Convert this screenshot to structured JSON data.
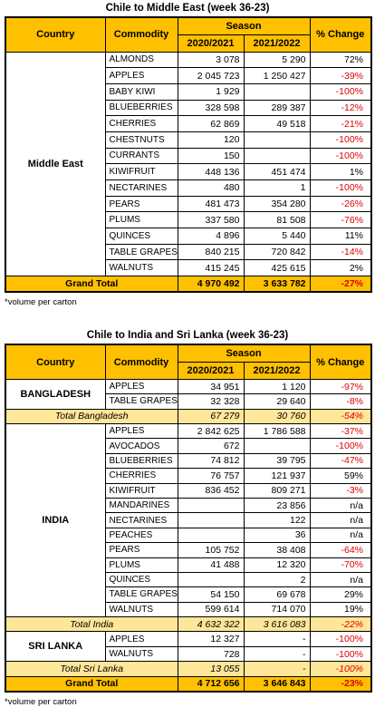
{
  "tables": [
    {
      "title": "Chile to Middle East (week 36-23)",
      "header": {
        "country": "Country",
        "commodity": "Commodity",
        "season": "Season",
        "years": [
          "2020/2021",
          "2021/2022"
        ],
        "change": "% Change"
      },
      "groups": [
        {
          "country": "Middle East",
          "rows": [
            [
              "ALMONDS",
              "3 078",
              "5 290",
              "72%"
            ],
            [
              "APPLES",
              "2 045 723",
              "1 250 427",
              "-39%"
            ],
            [
              "BABY KIWI",
              "1 929",
              null,
              "-100%"
            ],
            [
              "BLUEBERRIES",
              "328 598",
              "289 387",
              "-12%"
            ],
            [
              "CHERRIES",
              "62 869",
              "49 518",
              "-21%"
            ],
            [
              "CHESTNUTS",
              "120",
              null,
              "-100%"
            ],
            [
              "CURRANTS",
              "150",
              null,
              "-100%"
            ],
            [
              "KIWIFRUIT",
              "448 136",
              "451 474",
              "1%"
            ],
            [
              "NECTARINES",
              "480",
              "1",
              "-100%"
            ],
            [
              "PEARS",
              "481 473",
              "354 280",
              "-26%"
            ],
            [
              "PLUMS",
              "337 580",
              "81 508",
              "-76%"
            ],
            [
              "QUINCES",
              "4 896",
              "5 440",
              "11%"
            ],
            [
              "TABLE GRAPES",
              "840 215",
              "720 842",
              "-14%"
            ],
            [
              "WALNUTS",
              "415 245",
              "425 615",
              "2%"
            ]
          ]
        }
      ],
      "grand_total": [
        "Grand Total",
        "4 970 492",
        "3 633 782",
        "-27%"
      ],
      "note": "*volume per carton"
    },
    {
      "title": "Chile to India and Sri Lanka (week 36-23)",
      "header": {
        "country": "Country",
        "commodity": "Commodity",
        "season": "Season",
        "years": [
          "2020/2021",
          "2021/2022"
        ],
        "change": "% Change"
      },
      "groups": [
        {
          "country": "BANGLADESH",
          "rows": [
            [
              "APPLES",
              "34 951",
              "1 120",
              "-97%"
            ],
            [
              "TABLE GRAPES",
              "32 328",
              "29 640",
              "-8%"
            ]
          ],
          "total": [
            "Total Bangladesh",
            "67 279",
            "30 760",
            "-54%"
          ]
        },
        {
          "country": "INDIA",
          "rows": [
            [
              "APPLES",
              "2 842 625",
              "1 786 588",
              "-37%"
            ],
            [
              "AVOCADOS",
              "672",
              null,
              "-100%"
            ],
            [
              "BLUEBERRIES",
              "74 812",
              "39 795",
              "-47%"
            ],
            [
              "CHERRIES",
              "76 757",
              "121 937",
              "59%"
            ],
            [
              "KIWIFRUIT",
              "836 452",
              "809 271",
              "-3%"
            ],
            [
              "MANDARINES",
              null,
              "23 856",
              "n/a"
            ],
            [
              "NECTARINES",
              null,
              "122",
              "n/a"
            ],
            [
              "PEACHES",
              null,
              "36",
              "n/a"
            ],
            [
              "PEARS",
              "105 752",
              "38 408",
              "-64%"
            ],
            [
              "PLUMS",
              "41 488",
              "12 320",
              "-70%"
            ],
            [
              "QUINCES",
              null,
              "2",
              "n/a"
            ],
            [
              "TABLE GRAPES",
              "54 150",
              "69 678",
              "29%"
            ],
            [
              "WALNUTS",
              "599 614",
              "714 070",
              "19%"
            ]
          ],
          "total": [
            "Total India",
            "4 632 322",
            "3 616 083",
            "-22%"
          ]
        },
        {
          "country": "SRI LANKA",
          "rows": [
            [
              "APPLES",
              "12 327",
              "-",
              "-100%"
            ],
            [
              "WALNUTS",
              "728",
              "-",
              "-100%"
            ]
          ],
          "total": [
            "Total Sri Lanka",
            "13 055",
            "-",
            "-100%"
          ]
        }
      ],
      "grand_total": [
        "Grand Total",
        "4 712 656",
        "3 646 843",
        "-23%"
      ],
      "note": "*volume per carton"
    }
  ]
}
